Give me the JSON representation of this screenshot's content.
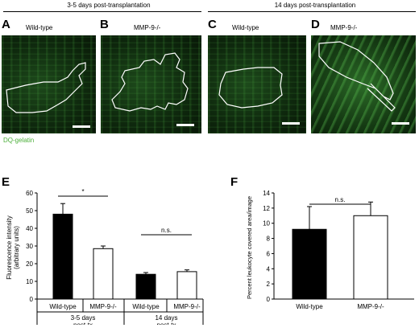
{
  "headers": {
    "group1": "3-5 days post-transplantation",
    "group2": "14 days post-transplantation"
  },
  "panels": [
    {
      "letter": "A",
      "title": "Wild-type"
    },
    {
      "letter": "B",
      "title": "MMP-9-/-"
    },
    {
      "letter": "C",
      "title": "Wild-type"
    },
    {
      "letter": "D",
      "title": "MMP-9-/-"
    }
  ],
  "stain_label": "DQ-gelatin",
  "colors": {
    "stain": "#4caf3a",
    "bar_filled": "#000000",
    "bar_open": "#ffffff"
  },
  "chart_data": [
    {
      "panel": "E",
      "type": "bar",
      "ylabel_lines": [
        "Fluorescence intensity",
        "(arbitrary units)"
      ],
      "ylim": [
        0,
        60
      ],
      "yticks": [
        0,
        10,
        20,
        30,
        40,
        50,
        60
      ],
      "categories": [
        "Wild-type",
        "MMP-9-/-",
        "Wild-type",
        "MMP-9-/-"
      ],
      "values": [
        48,
        28.5,
        14,
        15.5
      ],
      "errors": [
        6,
        1.5,
        1,
        1
      ],
      "fills": [
        "filled",
        "open",
        "filled",
        "open"
      ],
      "groups": [
        {
          "label_lines": [
            "3-5 days",
            "post-tx"
          ],
          "indices": [
            0,
            1
          ],
          "significance": "*"
        },
        {
          "label_lines": [
            "14 days",
            "post-tx"
          ],
          "indices": [
            2,
            3
          ],
          "significance": "n.s."
        }
      ]
    },
    {
      "panel": "F",
      "type": "bar",
      "ylabel": "Percent leukocyte covered area/image",
      "ylim": [
        0,
        14
      ],
      "yticks": [
        0,
        2,
        4,
        6,
        8,
        10,
        12,
        14
      ],
      "categories": [
        "Wild-type",
        "MMP-9-/-"
      ],
      "values": [
        9.2,
        11
      ],
      "errors": [
        3,
        1.8
      ],
      "fills": [
        "filled",
        "open"
      ],
      "significance": "n.s."
    }
  ]
}
